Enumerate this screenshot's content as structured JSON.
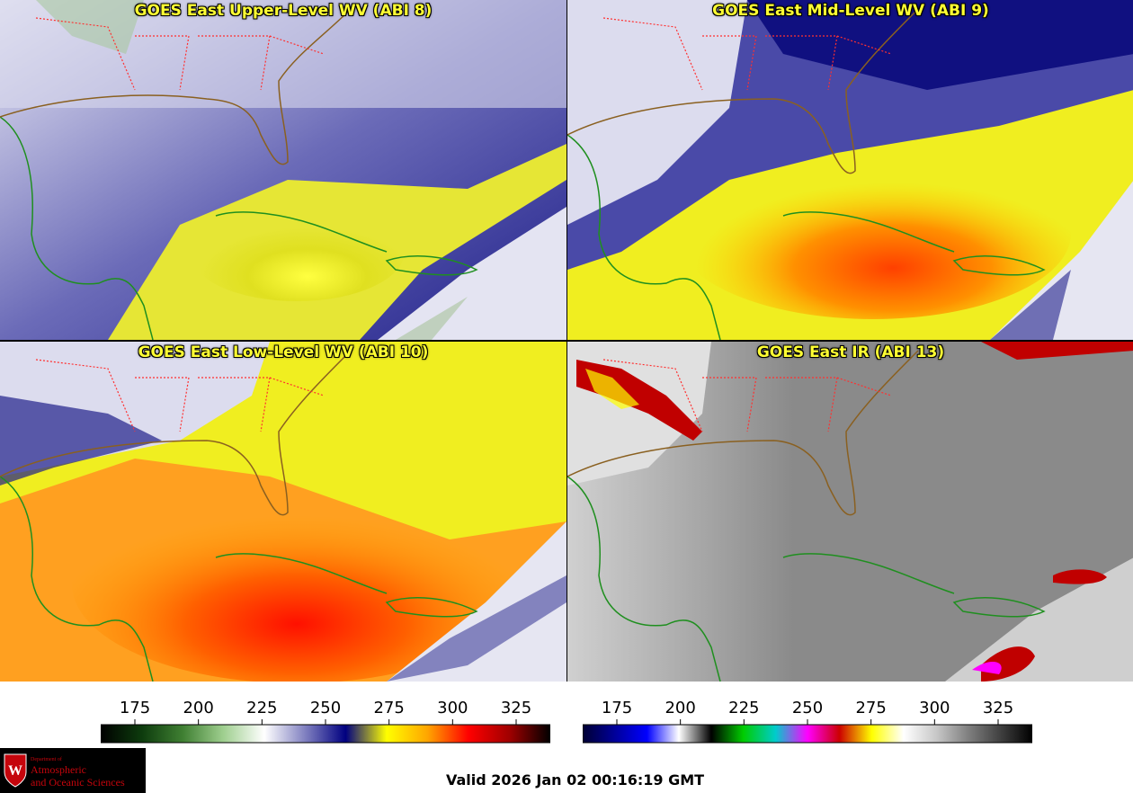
{
  "panels": [
    {
      "title": "GOES East Upper-Level WV (ABI 8)",
      "style": "wv-upper"
    },
    {
      "title": "GOES East Mid-Level WV (ABI 9)",
      "style": "wv-mid"
    },
    {
      "title": "GOES East Low-Level WV (ABI 10)",
      "style": "wv-low"
    },
    {
      "title": "GOES East IR (ABI 13)",
      "style": "ir"
    }
  ],
  "colorbars": [
    {
      "ticks": [
        "175",
        "200",
        "225",
        "250",
        "275",
        "300",
        "325"
      ],
      "stops": [
        "#000000",
        "#0d3b0d",
        "#3f7f32",
        "#9fcf8f",
        "#ffffff",
        "#8080c0",
        "#000080",
        "#ffff00",
        "#ffa500",
        "#ff0000",
        "#a00000",
        "#000000"
      ]
    },
    {
      "ticks": [
        "175",
        "200",
        "225",
        "250",
        "275",
        "300",
        "325"
      ],
      "stops": [
        "#000033",
        "#000099",
        "#0000ff",
        "#ffffff",
        "#000000",
        "#00cc00",
        "#00cccc",
        "#ff00ff",
        "#cc0000",
        "#ffff00",
        "#ffffff",
        "#c8c8c8",
        "#808080",
        "#404040",
        "#000000"
      ]
    }
  ],
  "footer": {
    "valid_time": "Valid 2026 Jan 02 00:16:19 GMT",
    "logo": {
      "dept": "Department of",
      "line1": "Atmospheric",
      "line2": "and Oceanic Sciences",
      "emblem_letter": "W"
    }
  },
  "colors": {
    "coastline": "#1f8f1f",
    "state_border": "#ff3030",
    "title_text": "#ffff33"
  }
}
